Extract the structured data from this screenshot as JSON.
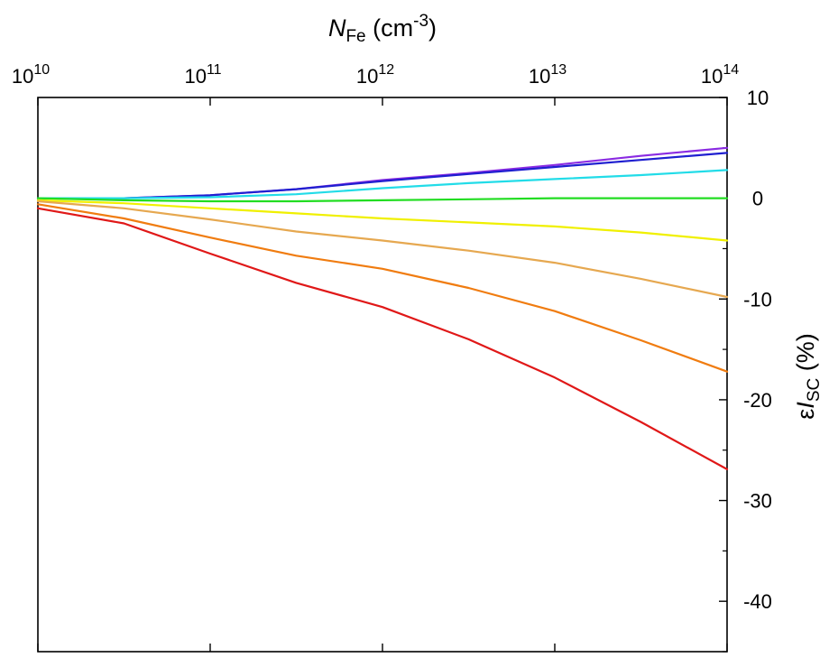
{
  "chart_data": {
    "type": "line",
    "x_scale": "log",
    "x_range": [
      10000000000.0,
      100000000000000.0
    ],
    "y_range": [
      -45,
      10
    ],
    "grid": false,
    "legend": "none",
    "xlabel": {
      "main": "N",
      "sub": "Fe",
      "unit": " (cm",
      "exp": "-3",
      "close": ")"
    },
    "ylabel": {
      "eps": "ε",
      "main": "I",
      "sub": "SC",
      "unit": " (%)"
    },
    "x_ticks": [
      {
        "value": 10000000000.0,
        "base": "10",
        "exp": "10"
      },
      {
        "value": 100000000000.0,
        "base": "10",
        "exp": "11"
      },
      {
        "value": 1000000000000.0,
        "base": "10",
        "exp": "12"
      },
      {
        "value": 10000000000000.0,
        "base": "10",
        "exp": "13"
      },
      {
        "value": 100000000000000.0,
        "base": "10",
        "exp": "14"
      }
    ],
    "y_ticks": [
      {
        "value": 10,
        "label": "10"
      },
      {
        "value": 0,
        "label": "0"
      },
      {
        "value": -10,
        "label": "-10"
      },
      {
        "value": -20,
        "label": "-20"
      },
      {
        "value": -30,
        "label": "-30"
      },
      {
        "value": -40,
        "label": "-40"
      }
    ],
    "x": [
      10000000000.0,
      31600000000.0,
      100000000000.0,
      316000000000.0,
      1000000000000.0,
      3160000000000.0,
      10000000000000.0,
      31600000000000.0,
      100000000000000.0
    ],
    "series": [
      {
        "color": "#8a2be2",
        "values": [
          0,
          0,
          0.3,
          0.9,
          1.8,
          2.5,
          3.3,
          4.2,
          5.0
        ]
      },
      {
        "color": "#1f1fd0",
        "values": [
          0,
          0,
          0.3,
          0.9,
          1.7,
          2.4,
          3.1,
          3.8,
          4.5
        ]
      },
      {
        "color": "#22dce8",
        "values": [
          0,
          0,
          0.1,
          0.4,
          1.0,
          1.5,
          1.9,
          2.3,
          2.8
        ]
      },
      {
        "color": "#22dd22",
        "values": [
          0,
          -0.2,
          -0.3,
          -0.3,
          -0.2,
          -0.1,
          0,
          0,
          0
        ]
      },
      {
        "color": "#f0f000",
        "values": [
          -0.2,
          -0.5,
          -1.0,
          -1.5,
          -2.0,
          -2.4,
          -2.8,
          -3.4,
          -4.2
        ]
      },
      {
        "color": "#e6a850",
        "values": [
          -0.3,
          -1.0,
          -2.1,
          -3.3,
          -4.2,
          -5.2,
          -6.4,
          -8.0,
          -9.8
        ]
      },
      {
        "color": "#f07c10",
        "values": [
          -0.6,
          -2.0,
          -3.9,
          -5.7,
          -7.0,
          -8.9,
          -11.2,
          -14.1,
          -17.2
        ]
      },
      {
        "color": "#e01818",
        "values": [
          -1.0,
          -2.5,
          -5.5,
          -8.4,
          -10.8,
          -14.0,
          -17.8,
          -22.2,
          -26.9
        ]
      }
    ]
  }
}
